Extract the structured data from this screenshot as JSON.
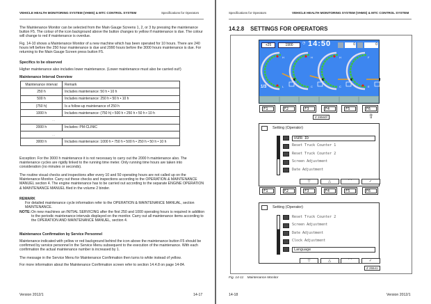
{
  "left_page": {
    "header_title": "VEHICLE HEALTH MONITORING SYSTEM (VHMS) & MTC CONTROL SYSTEM",
    "header_section": "Specifications for Operators",
    "p1": "The Maintenance Monitor can be selected from the Main Gauge Screens 1, 2, or 3 by pressing the maintenance button F5. The colour of the icon background above the button changes to yellow if maintenance is due. The colour will change to red if maintenance is overdue.",
    "p2": "Fig. 14-10 shows a Maintenance Monitor of a new machine which has been operated for 10 hours. There are 240 hours left before the 250 hour maintenance is due and 2990 hours before the 3000 hours maintenance is due. For returning to the Main Gauge Screen press button F5.",
    "specifics_heading": "Specifics to be observed",
    "specifics_text": "Higher maintenance also includes lower maintenance. (Lower maintenance must also be carried out!)",
    "table_heading": "Maintenance Interval Overview",
    "table": {
      "headers": [
        "Maintenance interval",
        "Remark"
      ],
      "rows": [
        [
          "250 h",
          "Includes maintenance: 50 h • 10 h"
        ],
        [
          "500 h",
          "Includes maintenance: 250 h • 50 h • 10 h"
        ],
        [
          "(750 h)",
          "Is a follow-up maintenance of 250 h"
        ],
        [
          "1000 h",
          "Includes maintenance: (750 h) • 500 h • 250 h • 50 h • 10 h"
        ],
        [
          "...",
          ""
        ],
        [
          "2000 h",
          "Includes: PM-CLINIC"
        ],
        [
          "...",
          ""
        ],
        [
          "3000 h",
          "Includes maintenance: 1000 h • 750 h • 500 h • 250 h • 50 h • 10 h"
        ]
      ]
    },
    "exception": "Exception: For the 3000 h maintenance it is not necessary to carry out the 2000 h maintenance also. The maintenance cycles are rigidly linked to the running time meter. Only running time hours are taken into consideration (no minutes or seconds).",
    "routine": "The routine visual checks and inspections after every 10 and 50 operating hours are not called up on the Maintenance Monitor. Carry out these checks and inspections according to the OPERATION & MAINTENANCE MANUEL section 4. The engine maintenance has to be carried out according to the separate ENGINE OPERATION & MAINTENANCE MANUEL filed in the volume 2 binder.",
    "remark_label": "REMARK",
    "remark_text": "For detailed maintenance cycle information refer to the OPERATION & MAINTENANCE MANUAL, section MAINTENANCE.",
    "note_label": "NOTE:",
    "note_text": "On new machines an INITIAL SERVICING after the first 250 and 1000 operating hours is required in addition to the periodic maintenance intervals displayed on the monitor. Carry out all maintenance items according to the OPERATION AND MAINTENANCE MANUEL, section 4.",
    "confirm_heading": "Maintenance Confirmation by Service Personnel",
    "confirm_text": "Maintenance indicated with yellow or red background behind the icon above the maintenance button F5 should be confirmed by service personnel in the Service Menu subsequent to the execution of the maintenance. With each confirmation the actual maintenance number is increased by 1.",
    "message_text": "The message in the Service Menu for Maintenance Confirmation then turns to white instead of yellow.",
    "more_info": "For more information about the Maintenance Confirmation screen refer to section 14.4.8 on page 14-84.",
    "footer_version": "Version 2012/1",
    "footer_page": "14-17"
  },
  "right_page": {
    "header_section": "Specifications for Operators",
    "header_title": "VEHICLE HEALTH MONITORING SYSTEM (VHMS) & MTC CONTROL SYSTEM",
    "section_title": "14.2.8    SETTINGS FOR OPERATORS",
    "gauge_screen": {
      "box1": "+25",
      "box2": "1900",
      "clock": "14:50",
      "counter1": "0",
      "counter2": "0",
      "page_indicator": "1/3",
      "gauge_labels": [
        [
          "H",
          "L"
        ],
        [
          "H",
          "C"
        ],
        [
          "H",
          "C"
        ],
        [
          "F",
          "E"
        ]
      ],
      "fkeys": [
        "F1",
        "F2",
        "F3",
        "F4",
        "F5",
        "F6"
      ],
      "ref": "Z 28560f"
    },
    "setting_screen_1": {
      "title": "Setting (Operator)",
      "items": [
        "USER ID",
        "Reset Truck Counter 1",
        "Reset Truck Counter 2",
        "Screen Adjustment",
        "Date Adjustment"
      ],
      "selected": 0,
      "nav": [
        "▽",
        "△",
        "⌒",
        "✓"
      ],
      "fkeys": [
        "F1",
        "F2",
        "F3",
        "F4",
        "F5",
        "F6"
      ]
    },
    "setting_screen_2": {
      "title": "Setting (Operator)",
      "items": [
        "Reset Truck Counter 2",
        "Screen Adjustment",
        "Date Adjustment",
        "Clock Adjustment",
        "Language"
      ],
      "selected": 4,
      "nav": [
        "▽",
        "△",
        "⌒",
        "✓"
      ],
      "ref": "Z 25541"
    },
    "caption": "Fig. 14-11    Maintenance Monitor",
    "footer_page": "14-18",
    "footer_version": "Version 2012/1"
  },
  "colors": {
    "screen_blue": "#3d86f0",
    "gauge_green": "#3ec43e",
    "gauge_red": "#e02020",
    "needle": "#f0a020"
  }
}
